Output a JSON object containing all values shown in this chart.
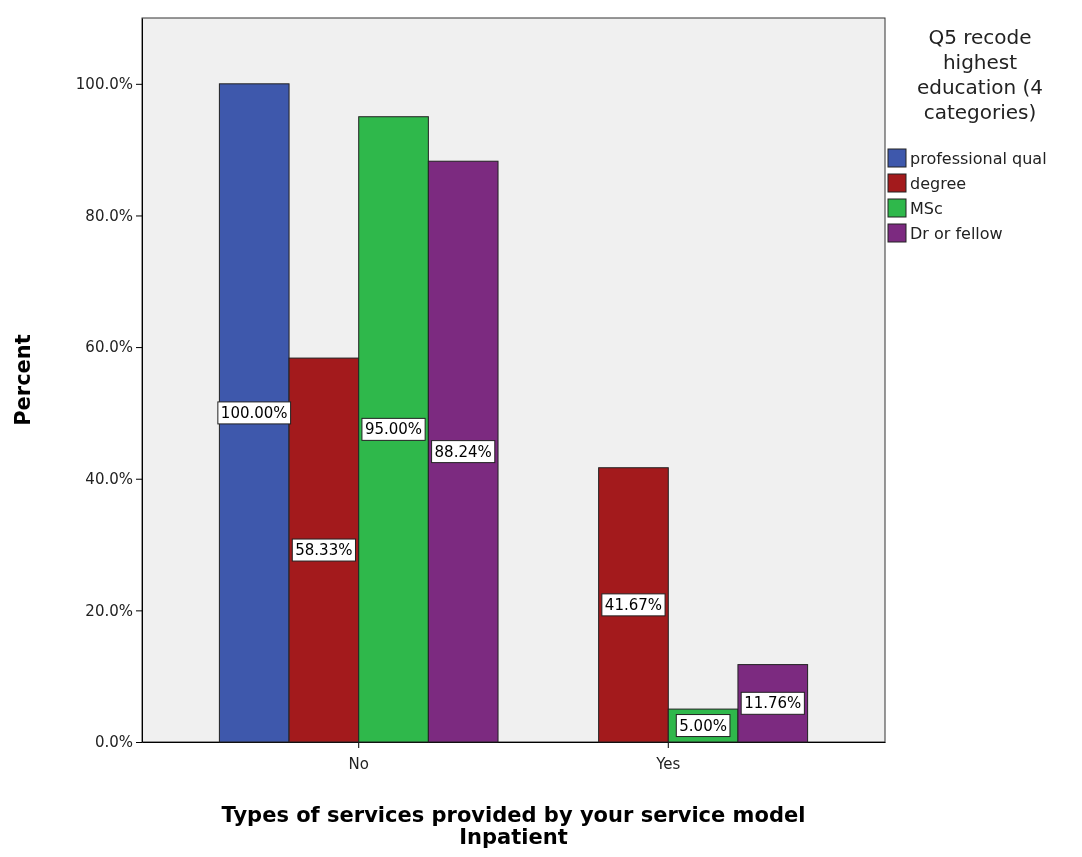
{
  "chart_data": {
    "type": "bar",
    "xlabel": "Types of services provided by your service model Inpatient",
    "ylabel": "Percent",
    "legend_title": "Q5 recode highest education (4 categories)",
    "categories": [
      "No",
      "Yes"
    ],
    "series": [
      {
        "name": "professional qual",
        "color": "#3e58ac",
        "values": [
          100,
          null
        ],
        "value_labels": [
          "100.00%",
          null
        ]
      },
      {
        "name": "degree",
        "color": "#a31a1c",
        "values": [
          58.33,
          41.67
        ],
        "value_labels": [
          "58.33%",
          "41.67%"
        ]
      },
      {
        "name": "MSc",
        "color": "#2fb84b",
        "values": [
          95,
          5
        ],
        "value_labels": [
          "95.00%",
          "5.00%"
        ]
      },
      {
        "name": "Dr or fellow",
        "color": "#7c2a80",
        "values": [
          88.24,
          11.76
        ],
        "value_labels": [
          "88.24%",
          "11.76%"
        ]
      }
    ],
    "ylim": [
      0,
      110
    ],
    "yticks": [
      {
        "value": 0,
        "label": "0.0%"
      },
      {
        "value": 20,
        "label": "20.0%"
      },
      {
        "value": 40,
        "label": "40.0%"
      },
      {
        "value": 60,
        "label": "60.0%"
      },
      {
        "value": 80,
        "label": "80.0%"
      },
      {
        "value": 100,
        "label": "100.0%"
      }
    ],
    "grid": false,
    "legend": "right"
  }
}
